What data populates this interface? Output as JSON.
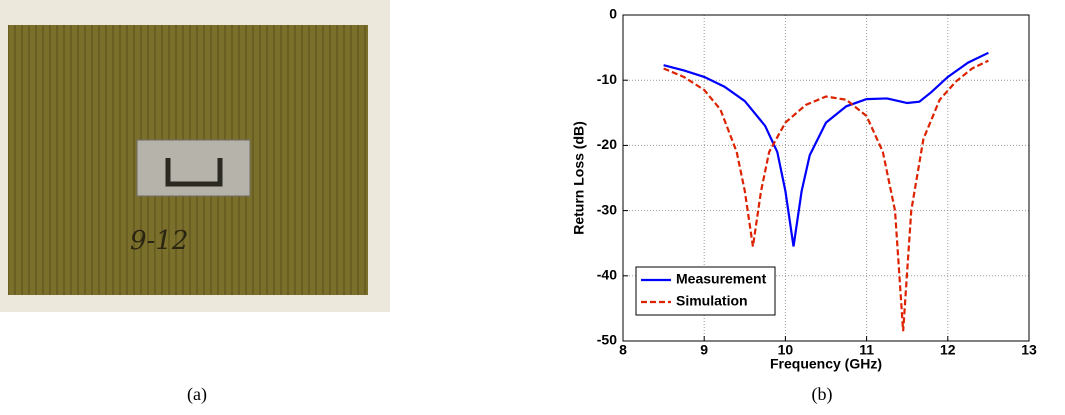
{
  "photo": {
    "label": "9-12"
  },
  "captions": [
    "(a)",
    "(b)"
  ],
  "chart_data": {
    "type": "line",
    "xlabel": "Frequency (GHz)",
    "ylabel": "Return Loss (dB)",
    "xlim": [
      8,
      13
    ],
    "xticks": [
      8,
      9,
      10,
      11,
      12,
      13
    ],
    "ylim": [
      -50,
      0
    ],
    "yticks": [
      0,
      -10,
      -20,
      -30,
      -40,
      -50
    ],
    "grid": true,
    "legend": "lower left",
    "series": [
      {
        "name": "Measurement",
        "color": "#0000ff",
        "dash": false,
        "x": [
          8.5,
          8.75,
          9.0,
          9.25,
          9.5,
          9.75,
          9.9,
          10.0,
          10.1,
          10.2,
          10.3,
          10.5,
          10.75,
          11.0,
          11.25,
          11.5,
          11.65,
          11.8,
          12.0,
          12.25,
          12.5
        ],
        "values": [
          -7.7,
          -8.5,
          -9.5,
          -11.0,
          -13.2,
          -17,
          -21,
          -27,
          -35.5,
          -27,
          -21.5,
          -16.5,
          -14,
          -12.9,
          -12.8,
          -13.5,
          -13.3,
          -11.8,
          -9.5,
          -7.3,
          -5.8
        ]
      },
      {
        "name": "Simulation",
        "color": "#dd2200",
        "dash": true,
        "x": [
          8.5,
          8.75,
          9.0,
          9.2,
          9.4,
          9.5,
          9.6,
          9.7,
          9.8,
          10.0,
          10.25,
          10.5,
          10.75,
          11.0,
          11.2,
          11.35,
          11.45,
          11.55,
          11.7,
          11.9,
          12.1,
          12.3,
          12.5
        ],
        "values": [
          -8.2,
          -9.5,
          -11.5,
          -14.5,
          -21,
          -27,
          -35.5,
          -27,
          -21,
          -16.5,
          -13.8,
          -12.5,
          -13.0,
          -15.5,
          -21,
          -30,
          -48.5,
          -30,
          -19,
          -13,
          -10.2,
          -8.2,
          -7.0
        ]
      }
    ]
  }
}
